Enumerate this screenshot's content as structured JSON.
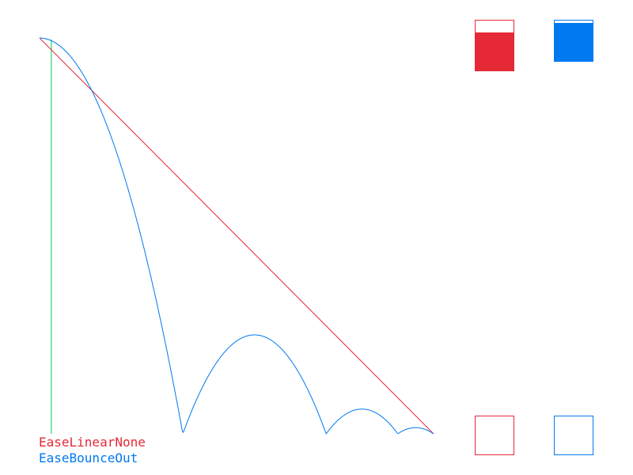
{
  "legend": {
    "linear_label": "EaseLinearNone",
    "bounce_label": "EaseBounceOut"
  },
  "colors": {
    "linear": "#e62937",
    "bounce": "#0079f1",
    "progress_line": "#00c850",
    "background": "#ffffff"
  },
  "easing": {
    "linear": "EaseLinearNone",
    "bounce": "EaseBounceOut"
  },
  "animation": {
    "time_progress": 0.03
  }
}
